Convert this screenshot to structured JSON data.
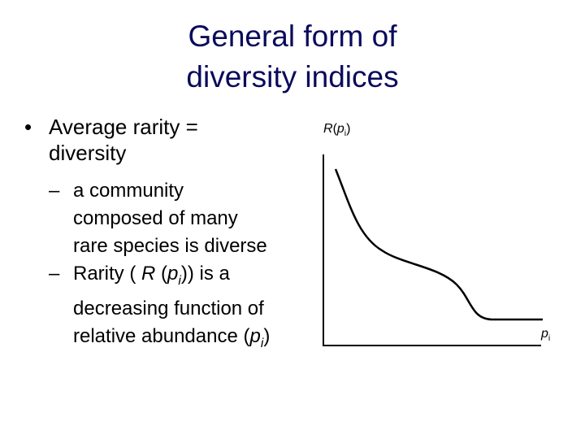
{
  "title": [
    "General form of",
    "diversity indices"
  ],
  "bullets": [
    {
      "marker": "•",
      "text": "Average rarity = diversity",
      "subs": [
        {
          "marker": "–",
          "runs": [
            {
              "text": "a community composed of many rare species is diverse"
            }
          ]
        },
        {
          "marker": "–",
          "runs": [
            {
              "text": "Rarity ( "
            },
            {
              "text": "R",
              "italic": true
            },
            {
              "text": " ("
            },
            {
              "text": "p",
              "italic": true
            },
            {
              "text": "i",
              "italic": true,
              "sub": true
            },
            {
              "text": ")) is a decreasing function of relative abundance ("
            },
            {
              "text": "p",
              "italic": true
            },
            {
              "text": "i",
              "italic": true,
              "sub": true
            },
            {
              "text": ")"
            }
          ]
        }
      ]
    }
  ],
  "diagram": {
    "y_label": [
      {
        "text": "R",
        "italic": true
      },
      {
        "text": "("
      },
      {
        "text": "p",
        "italic": true
      },
      {
        "text": "i",
        "sub": true
      },
      {
        "text": ")"
      }
    ],
    "x_label": [
      {
        "text": "p",
        "italic": true
      },
      {
        "text": "i",
        "sub": true
      }
    ]
  }
}
